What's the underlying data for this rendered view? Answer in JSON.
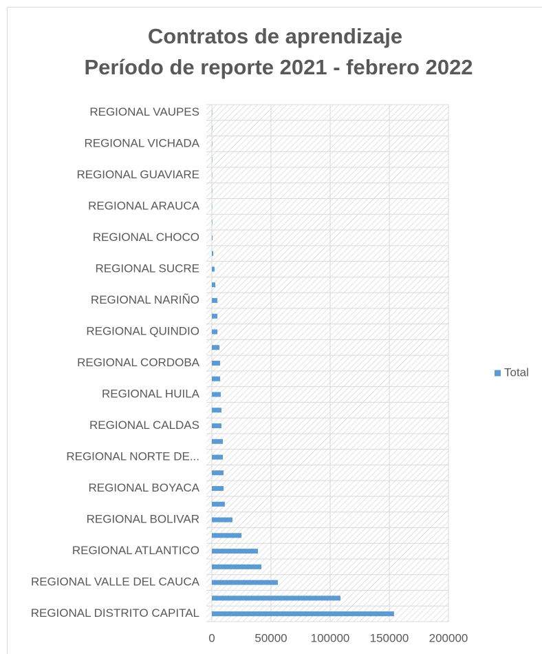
{
  "chart_data": {
    "type": "hbar",
    "title": [
      "Contratos de aprendizaje",
      "Período de reporte 2021 - febrero 2022"
    ],
    "categories": [
      "REGIONAL DISTRITO CAPITAL",
      null,
      "REGIONAL VALLE DEL CAUCA",
      null,
      "REGIONAL ATLANTICO",
      null,
      "REGIONAL BOLIVAR",
      null,
      "REGIONAL BOYACA",
      null,
      "REGIONAL NORTE DE...",
      null,
      "REGIONAL CALDAS",
      null,
      "REGIONAL HUILA",
      null,
      "REGIONAL CORDOBA",
      null,
      "REGIONAL QUINDIO",
      null,
      "REGIONAL NARIÑO",
      null,
      "REGIONAL SUCRE",
      null,
      "REGIONAL CHOCO",
      null,
      "REGIONAL ARAUCA",
      null,
      "REGIONAL GUAVIARE",
      null,
      "REGIONAL VICHADA",
      null,
      "REGIONAL VAUPES"
    ],
    "series": [
      {
        "name": "Total",
        "color": "#5b9bd5",
        "values": [
          154000,
          108700,
          55800,
          41900,
          39000,
          25000,
          17400,
          11000,
          9900,
          9900,
          9300,
          9300,
          8100,
          8100,
          7600,
          7000,
          7000,
          6400,
          4700,
          4700,
          4700,
          2900,
          2300,
          1200,
          600,
          400,
          300,
          200,
          150,
          100,
          80,
          50,
          30
        ]
      }
    ],
    "xlim": [
      0,
      200000
    ],
    "xticks": [
      0,
      50000,
      100000,
      150000,
      200000
    ],
    "grid": true,
    "legend": "right"
  }
}
